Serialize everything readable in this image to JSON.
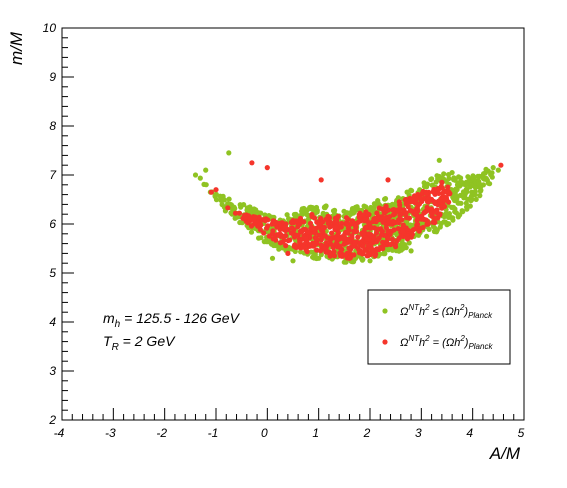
{
  "colors": {
    "green": "#8fc322",
    "red": "#f5352b",
    "frame": "#000000"
  },
  "chart_data": {
    "type": "scatter",
    "xlabel": "A/M",
    "ylabel": "m/M",
    "xlim": [
      -4,
      5
    ],
    "ylim": [
      2,
      10
    ],
    "xticks": [
      "-4",
      "-3",
      "-2",
      "-1",
      "0",
      "1",
      "2",
      "3",
      "4",
      "5"
    ],
    "yticks": [
      "2",
      "3",
      "4",
      "5",
      "6",
      "7",
      "8",
      "9",
      "10"
    ],
    "grid": false,
    "legend_position": "bottom-right",
    "annotations": {
      "mh": {
        "main": "m",
        "sub": "h",
        "rest": " = 125.5 - 126 GeV"
      },
      "tr": {
        "main": "T",
        "sub": "R",
        "rest": " = 2 GeV"
      }
    },
    "series": [
      {
        "label": {
          "omega": "Ω",
          "sup1": "NT",
          "mid1": "h",
          "sup2": "2",
          "rel": " ≤ (Ωh",
          "sup3": "2",
          "close": ")",
          "sub": "Planck"
        },
        "color": "#8fc322",
        "outline": [
          [
            -1.4,
            7.0
          ],
          [
            -1.2,
            6.9
          ],
          [
            -1.0,
            6.7
          ],
          [
            -0.8,
            6.55
          ],
          [
            -0.6,
            6.45
          ],
          [
            -0.4,
            6.4
          ],
          [
            -0.2,
            6.3
          ],
          [
            0.0,
            6.25
          ],
          [
            0.2,
            6.15
          ],
          [
            0.4,
            6.2
          ],
          [
            0.6,
            6.3
          ],
          [
            0.8,
            6.35
          ],
          [
            1.0,
            6.45
          ],
          [
            1.2,
            6.35
          ],
          [
            1.4,
            6.25
          ],
          [
            1.6,
            6.3
          ],
          [
            1.8,
            6.4
          ],
          [
            2.0,
            6.45
          ],
          [
            2.2,
            6.5
          ],
          [
            2.4,
            6.55
          ],
          [
            2.6,
            6.6
          ],
          [
            2.8,
            6.7
          ],
          [
            3.0,
            6.8
          ],
          [
            3.2,
            6.95
          ],
          [
            3.4,
            7.05
          ],
          [
            3.6,
            7.0
          ],
          [
            3.8,
            6.95
          ],
          [
            4.0,
            7.0
          ],
          [
            4.2,
            7.1
          ],
          [
            4.4,
            7.15
          ],
          [
            4.45,
            7.0
          ],
          [
            4.3,
            6.75
          ],
          [
            4.1,
            6.5
          ],
          [
            3.9,
            6.3
          ],
          [
            3.7,
            6.1
          ],
          [
            3.5,
            5.95
          ],
          [
            3.3,
            5.8
          ],
          [
            3.1,
            5.7
          ],
          [
            2.9,
            5.6
          ],
          [
            2.7,
            5.5
          ],
          [
            2.5,
            5.42
          ],
          [
            2.3,
            5.35
          ],
          [
            2.1,
            5.3
          ],
          [
            1.9,
            5.25
          ],
          [
            1.7,
            5.22
          ],
          [
            1.5,
            5.22
          ],
          [
            1.3,
            5.24
          ],
          [
            1.1,
            5.26
          ],
          [
            0.9,
            5.3
          ],
          [
            0.7,
            5.33
          ],
          [
            0.5,
            5.38
          ],
          [
            0.3,
            5.45
          ],
          [
            0.1,
            5.55
          ],
          [
            -0.1,
            5.65
          ],
          [
            -0.3,
            5.8
          ],
          [
            -0.5,
            5.95
          ],
          [
            -0.7,
            6.15
          ],
          [
            -0.9,
            6.35
          ],
          [
            -1.1,
            6.6
          ],
          [
            -1.3,
            6.85
          ]
        ],
        "x": [
          -1.4,
          -1.2,
          -0.75,
          3.35,
          3.6,
          4.0,
          4.4,
          4.5,
          0.1,
          0.5,
          1.0,
          1.5,
          2.0,
          2.4,
          2.8
        ],
        "y": [
          7.0,
          7.1,
          7.45,
          7.3,
          7.05,
          6.95,
          7.15,
          7.1,
          5.3,
          5.25,
          5.3,
          5.22,
          5.25,
          5.3,
          5.45
        ]
      },
      {
        "label": {
          "omega": "Ω",
          "sup1": "NT",
          "mid1": "h",
          "sup2": "2",
          "rel": " = (Ωh",
          "sup3": "2",
          "close": ")",
          "sub": "Planck"
        },
        "color": "#f5352b",
        "outline": [
          [
            -1.2,
            6.8
          ],
          [
            -1.0,
            6.6
          ],
          [
            -0.8,
            6.4
          ],
          [
            -0.6,
            6.25
          ],
          [
            -0.4,
            6.2
          ],
          [
            -0.2,
            6.15
          ],
          [
            0.0,
            6.1
          ],
          [
            0.2,
            6.05
          ],
          [
            0.4,
            6.05
          ],
          [
            0.6,
            6.1
          ],
          [
            0.8,
            6.2
          ],
          [
            1.0,
            6.25
          ],
          [
            1.2,
            6.2
          ],
          [
            1.4,
            6.15
          ],
          [
            1.6,
            6.2
          ],
          [
            1.8,
            6.25
          ],
          [
            2.0,
            6.3
          ],
          [
            2.2,
            6.35
          ],
          [
            2.4,
            6.4
          ],
          [
            2.6,
            6.5
          ],
          [
            2.8,
            6.55
          ],
          [
            3.0,
            6.65
          ],
          [
            3.2,
            6.75
          ],
          [
            3.4,
            6.8
          ],
          [
            3.6,
            6.75
          ],
          [
            3.5,
            6.3
          ],
          [
            3.3,
            6.05
          ],
          [
            3.1,
            5.9
          ],
          [
            2.9,
            5.75
          ],
          [
            2.7,
            5.62
          ],
          [
            2.5,
            5.52
          ],
          [
            2.3,
            5.45
          ],
          [
            2.1,
            5.38
          ],
          [
            1.9,
            5.32
          ],
          [
            1.7,
            5.3
          ],
          [
            1.5,
            5.3
          ],
          [
            1.3,
            5.32
          ],
          [
            1.1,
            5.35
          ],
          [
            0.9,
            5.4
          ],
          [
            0.7,
            5.45
          ],
          [
            0.5,
            5.5
          ],
          [
            0.3,
            5.58
          ],
          [
            0.1,
            5.7
          ],
          [
            -0.1,
            5.82
          ],
          [
            -0.3,
            5.95
          ],
          [
            -0.5,
            6.1
          ],
          [
            -0.7,
            6.25
          ],
          [
            -0.9,
            6.45
          ],
          [
            -1.1,
            6.65
          ]
        ],
        "x": [
          -0.3,
          0.0,
          1.05,
          2.35,
          3.4,
          4.55,
          -1.0,
          0.4,
          1.6,
          2.1
        ],
        "y": [
          7.25,
          7.15,
          6.9,
          6.9,
          6.85,
          7.2,
          6.7,
          5.4,
          5.3,
          5.35
        ]
      }
    ]
  }
}
